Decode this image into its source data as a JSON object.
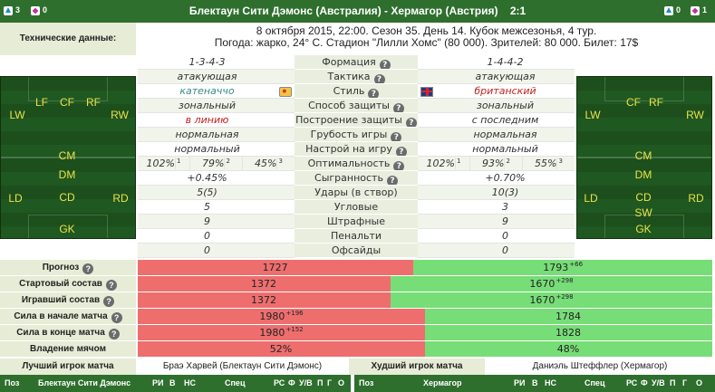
{
  "header": {
    "home_team": "Блектаун Сити Дэмонс",
    "home_country": "(Австралия)",
    "separator": "-",
    "away_team": "Хермагор",
    "away_country": "(Австрия)",
    "score": "2:1",
    "home_subs": "3",
    "home_red": "0",
    "away_subs": "0",
    "away_red": "1"
  },
  "tech": {
    "label": "Технические данные:",
    "line1": "8 октября 2015, 22:00. Сезон 35. День 14. Кубок межсезонья, 4 тур.",
    "line2": "Погода: жарко, 24° С. Стадион \"Лилли Хомс\" (80 000). Зрителей: 80 000. Билет: 17$"
  },
  "home_positions": [
    "LW",
    "LF",
    "CF",
    "RF",
    "RW",
    "CM",
    "DM",
    "LD",
    "CD",
    "RD",
    "GK"
  ],
  "away_positions": [
    "LW",
    "CF",
    "RF",
    "RW",
    "CM",
    "DM",
    "LD",
    "CD",
    "RD",
    "SW",
    "GK"
  ],
  "comparison": [
    {
      "label": "Формация",
      "home": "1-3-4-3",
      "away": "1-4-4-2",
      "help": true
    },
    {
      "label": "Тактика",
      "home": "атакующая",
      "away": "атакующая",
      "help": true
    },
    {
      "label": "Стиль",
      "home": "катеначчо",
      "away": "британский",
      "help": true,
      "home_flag": "pizza-icon",
      "away_flag": "uk-flag-icon"
    },
    {
      "label": "Способ защиты",
      "home": "зональный",
      "away": "зональный",
      "help": true
    },
    {
      "label": "Построение защиты",
      "home": "в линию",
      "away": "с последним",
      "help": true
    },
    {
      "label": "Грубость игры",
      "home": "нормальная",
      "away": "нормальная",
      "help": true
    },
    {
      "label": "Настрой на игру",
      "home": "нормальный",
      "away": "нормальный",
      "help": true
    },
    {
      "label": "Оптимальность",
      "help": true,
      "home_parts": [
        {
          "v": "102%",
          "s": "1"
        },
        {
          "v": "79%",
          "s": "2"
        },
        {
          "v": "45%",
          "s": "3"
        }
      ],
      "away_parts": [
        {
          "v": "102%",
          "s": "1"
        },
        {
          "v": "93%",
          "s": "2"
        },
        {
          "v": "55%",
          "s": "3"
        }
      ]
    },
    {
      "label": "Сыгранность",
      "home": "+0.45%",
      "away": "+0.70%",
      "help": true
    },
    {
      "label": "Удары (в створ)",
      "home": "5(5)",
      "away": "10(3)"
    },
    {
      "label": "Угловые",
      "home": "5",
      "away": "3"
    },
    {
      "label": "Штрафные",
      "home": "9",
      "away": "9"
    },
    {
      "label": "Пенальти",
      "home": "0",
      "away": "0"
    },
    {
      "label": "Офсайды",
      "home": "0",
      "away": "0"
    }
  ],
  "bars": [
    {
      "label": "Прогноз",
      "home": "1727",
      "home_sup": "",
      "away": "1793",
      "away_sup": "+66",
      "home_frac": 0.48
    },
    {
      "label": "Стартовый состав",
      "home": "1372",
      "home_sup": "",
      "away": "1670",
      "away_sup": "+298",
      "home_frac": 0.44
    },
    {
      "label": "Игравший состав",
      "home": "1372",
      "home_sup": "",
      "away": "1670",
      "away_sup": "+298",
      "home_frac": 0.44
    },
    {
      "label": "Сила в начале матча",
      "home": "1980",
      "home_sup": "+196",
      "away": "1784",
      "away_sup": "",
      "home_frac": 0.5
    },
    {
      "label": "Сила в конце матча",
      "home": "1980",
      "home_sup": "+152",
      "away": "1828",
      "away_sup": "",
      "home_frac": 0.5
    },
    {
      "label": "Владение мячом",
      "home": "52%",
      "home_sup": "",
      "away": "48%",
      "away_sup": "",
      "home_frac": 0.5
    }
  ],
  "best": {
    "label": "Лучший игрок матча",
    "value": "Браэ Харвей (Блектаун Сити Дэмонс)"
  },
  "worst": {
    "label": "Худший игрок матча",
    "value": "Даниэль Штеффлер (Хермагор)"
  },
  "table_left": [
    "Поз",
    "Блектаун Сити Дэмонс",
    "РИ",
    "В",
    "НС",
    "Спец",
    "РС",
    "Ф",
    "У/В",
    "П",
    "Г",
    "О"
  ],
  "table_right": [
    "Поз",
    "Хермагор",
    "РИ",
    "В",
    "НС",
    "Спец",
    "РС",
    "Ф",
    "У/В",
    "П",
    "Г",
    "О"
  ],
  "colors": {
    "header_green": "#2e6f2e",
    "home_bar": "#ee6e6e",
    "away_bar": "#77dd77",
    "label_bg": "#e6ecd6",
    "red_text": "#c41e1e"
  }
}
